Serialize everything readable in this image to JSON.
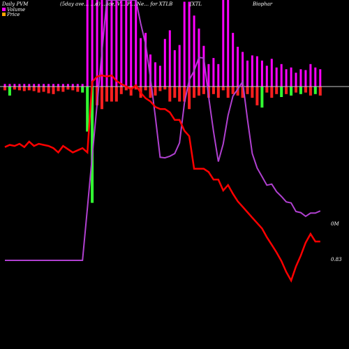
{
  "header": {
    "left": "Daily PVM",
    "center": "(5day ave… …d) …ice, V… P… Ne… for XTLB",
    "right_a": "[XTL",
    "right_b": "Biophar"
  },
  "legend": [
    {
      "label": "Volume",
      "color": "#ff00ff"
    },
    {
      "label": "Price",
      "color": "#ffa500"
    }
  ],
  "colors": {
    "background": "#000000",
    "volume_bar": "#ff00ff",
    "volume_line": "#b040d0",
    "price_line": "#ff0000",
    "pos_net": "#33ff33",
    "neg_net": "#ff2020",
    "zero_line": "#c8c8c8"
  },
  "chart_data": {
    "type": "bar",
    "subtitle_labels": {
      "volume_axis": "0M",
      "price_axis": "0.83"
    },
    "n": 66,
    "volume": [
      3,
      3,
      3,
      3,
      3,
      3,
      3,
      3,
      3,
      3,
      3,
      3,
      3,
      3,
      3,
      3,
      3,
      100,
      100,
      100,
      100,
      100,
      100,
      100,
      100,
      100,
      100,
      100,
      56,
      62,
      37,
      28,
      24,
      55,
      65,
      42,
      48,
      98,
      98,
      82,
      67,
      47,
      26,
      33,
      26,
      100,
      100,
      62,
      46,
      40,
      30,
      36,
      35,
      30,
      24,
      32,
      22,
      26,
      20,
      22,
      16,
      20,
      19,
      26,
      22,
      20
    ],
    "net": [
      -5,
      -12,
      -4,
      -5,
      -6,
      -5,
      -6,
      -8,
      -7,
      -9,
      -10,
      -6,
      -7,
      -4,
      -5,
      -7,
      -8,
      -60,
      -155,
      -25,
      -30,
      -20,
      -20,
      -20,
      -10,
      -5,
      -12,
      -4,
      -15,
      -5,
      -15,
      -12,
      -6,
      -4,
      -20,
      -15,
      -20,
      -20,
      -30,
      -15,
      -12,
      -10,
      -15,
      -10,
      -15,
      -5,
      -15,
      -10,
      -12,
      -15,
      -10,
      -15,
      -25,
      -28,
      -8,
      -15,
      -10,
      -14,
      -10,
      -12,
      -8,
      -10,
      -8,
      -12,
      -10,
      -12
    ],
    "price": [
      1.85,
      1.87,
      1.86,
      1.88,
      1.85,
      1.9,
      1.86,
      1.88,
      1.87,
      1.86,
      1.84,
      1.8,
      1.86,
      1.83,
      1.8,
      1.82,
      1.84,
      1.8,
      2.45,
      2.5,
      2.51,
      2.5,
      2.51,
      2.46,
      2.43,
      2.41,
      2.38,
      2.42,
      2.35,
      2.3,
      2.27,
      2.22,
      2.2,
      2.2,
      2.17,
      2.1,
      2.1,
      2.0,
      1.95,
      1.65,
      1.65,
      1.65,
      1.62,
      1.55,
      1.55,
      1.45,
      1.5,
      1.42,
      1.35,
      1.3,
      1.25,
      1.2,
      1.15,
      1.1,
      1.02,
      0.95,
      0.88,
      0.8,
      0.7,
      0.62,
      0.75,
      0.85,
      0.97,
      1.05,
      0.98,
      0.98
    ]
  }
}
